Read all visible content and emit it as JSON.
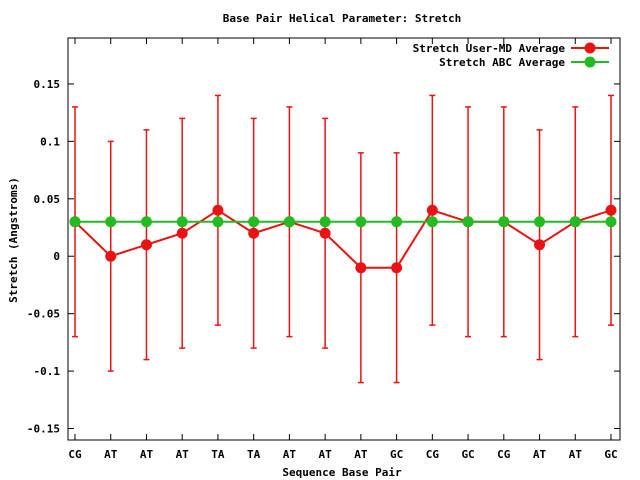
{
  "chart_data": {
    "type": "line",
    "title": "Base Pair Helical Parameter: Stretch",
    "xlabel": "Sequence Base Pair",
    "ylabel": "Stretch (Angstroms)",
    "categories": [
      "CG",
      "AT",
      "AT",
      "AT",
      "TA",
      "TA",
      "AT",
      "AT",
      "AT",
      "GC",
      "CG",
      "GC",
      "CG",
      "AT",
      "AT",
      "GC"
    ],
    "ylim": [
      -0.16,
      0.19
    ],
    "yticks": [
      -0.15,
      -0.1,
      -0.05,
      0,
      0.05,
      0.1,
      0.15
    ],
    "ytick_labels": [
      "-0.15",
      "-0.1",
      "-0.05",
      "0",
      "0.05",
      "0.1",
      "0.15"
    ],
    "legend_position": "top-right",
    "grid": false,
    "series": [
      {
        "name": "Stretch User-MD Average",
        "color": "#e81414",
        "values": [
          0.03,
          0.0,
          0.01,
          0.02,
          0.04,
          0.02,
          0.03,
          0.02,
          -0.01,
          -0.01,
          0.04,
          0.03,
          0.03,
          0.01,
          0.03,
          0.04
        ],
        "error_low": [
          -0.07,
          -0.1,
          -0.09,
          -0.08,
          -0.06,
          -0.08,
          -0.07,
          -0.08,
          -0.11,
          -0.11,
          -0.06,
          -0.07,
          -0.07,
          -0.09,
          -0.07,
          -0.06
        ],
        "error_high": [
          0.13,
          0.1,
          0.11,
          0.12,
          0.14,
          0.12,
          0.13,
          0.12,
          0.09,
          0.09,
          0.14,
          0.13,
          0.13,
          0.11,
          0.13,
          0.14
        ]
      },
      {
        "name": "Stretch ABC Average",
        "color": "#22bb22",
        "values": [
          0.03,
          0.03,
          0.03,
          0.03,
          0.03,
          0.03,
          0.03,
          0.03,
          0.03,
          0.03,
          0.03,
          0.03,
          0.03,
          0.03,
          0.03,
          0.03
        ]
      }
    ]
  }
}
